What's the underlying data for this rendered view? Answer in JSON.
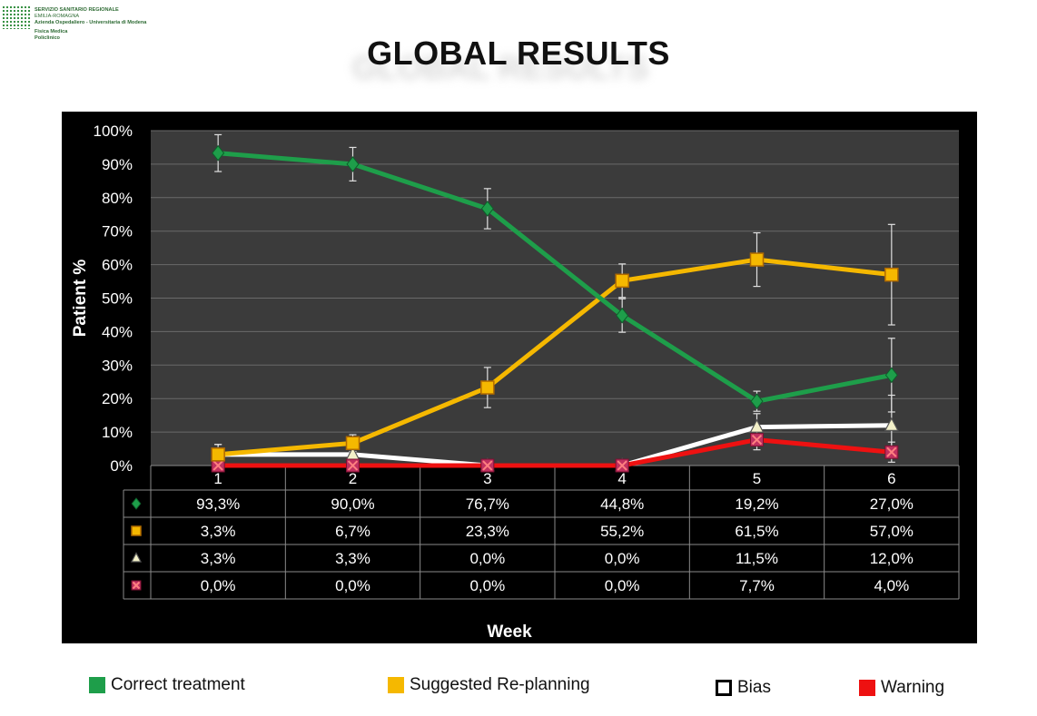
{
  "header": {
    "logo_lines": [
      "SERVIZIO SANITARIO REGIONALE",
      "EMILIA-ROMAGNA",
      "Azienda Ospedaliero - Universitaria di Modena",
      "Fisica Medica",
      "Policlinico"
    ],
    "title": "GLOBAL RESULTS"
  },
  "colors": {
    "correct": "#1e9e4a",
    "replanning": "#f5b800",
    "bias": "#ffffff",
    "warning": "#ee1111",
    "plot_bg": "#3b3b3b",
    "panel_bg": "#000000"
  },
  "chart_data": {
    "type": "line",
    "title": "GLOBAL RESULTS",
    "xlabel": "Week",
    "ylabel": "Patient %",
    "categories": [
      "1",
      "2",
      "3",
      "4",
      "5",
      "6"
    ],
    "ylim": [
      0,
      100
    ],
    "yticks": [
      "0%",
      "10%",
      "20%",
      "30%",
      "40%",
      "50%",
      "60%",
      "70%",
      "80%",
      "90%",
      "100%"
    ],
    "grid": true,
    "legend_position": "bottom",
    "series": [
      {
        "name": "Correct treatment",
        "marker": "diamond",
        "color": "#1e9e4a",
        "values": [
          93.3,
          90.0,
          76.7,
          44.8,
          19.2,
          27.0
        ],
        "labels": [
          "93,3%",
          "90,0%",
          "76,7%",
          "44,8%",
          "19,2%",
          "27,0%"
        ],
        "error": [
          5.5,
          5,
          6,
          5,
          3,
          11
        ]
      },
      {
        "name": "Suggested Re-planning",
        "marker": "square",
        "color": "#f5b800",
        "values": [
          3.3,
          6.7,
          23.3,
          55.2,
          61.5,
          57.0
        ],
        "labels": [
          "3,3%",
          "6,7%",
          "23,3%",
          "55,2%",
          "61,5%",
          "57,0%"
        ],
        "error": [
          3,
          2.5,
          6,
          5,
          8,
          15
        ]
      },
      {
        "name": "Bias",
        "marker": "triangle",
        "color": "#ffffff",
        "values": [
          3.3,
          3.3,
          0.0,
          0.0,
          11.5,
          12.0
        ],
        "labels": [
          "3,3%",
          "3,3%",
          "0,0%",
          "0,0%",
          "11,5%",
          "12,0%"
        ],
        "error": [
          3,
          0,
          0,
          0,
          4,
          9
        ]
      },
      {
        "name": "Warning",
        "marker": "x",
        "color": "#ee1111",
        "values": [
          0.0,
          0.0,
          0.0,
          0.0,
          7.7,
          4.0
        ],
        "labels": [
          "0,0%",
          "0,0%",
          "0,0%",
          "0,0%",
          "7,7%",
          "4,0%"
        ],
        "error": [
          0,
          0,
          0,
          0,
          3,
          3
        ]
      }
    ]
  },
  "legend": [
    {
      "label": "Correct treatment",
      "color": "#1e9e4a",
      "style": "filled"
    },
    {
      "label": "Suggested Re-planning",
      "color": "#f5b800",
      "style": "filled"
    },
    {
      "label": "Bias",
      "color": "#ffffff",
      "style": "outlined"
    },
    {
      "label": "Warning",
      "color": "#ee1111",
      "style": "filled"
    }
  ]
}
